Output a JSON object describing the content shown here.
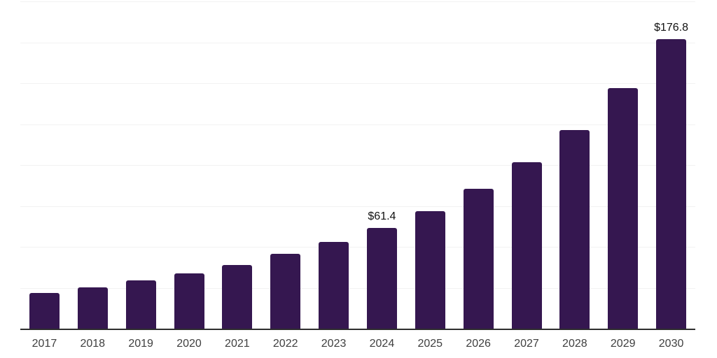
{
  "chart_data": {
    "type": "bar",
    "categories": [
      "2017",
      "2018",
      "2019",
      "2020",
      "2021",
      "2022",
      "2023",
      "2024",
      "2025",
      "2026",
      "2027",
      "2028",
      "2029",
      "2030"
    ],
    "values": [
      21.8,
      25.2,
      29.5,
      33.8,
      38.9,
      45.7,
      52.9,
      61.4,
      71.9,
      85.6,
      101.6,
      121.3,
      146.9,
      176.8
    ],
    "value_labels": [
      "",
      "",
      "",
      "",
      "",
      "",
      "",
      "$61.4",
      "",
      "",
      "",
      "",
      "",
      "$176.8"
    ],
    "title": "",
    "xlabel": "",
    "ylabel": "",
    "ylim": [
      0,
      200
    ],
    "gridline_step": 25,
    "grid": true,
    "legend": "none",
    "y_axis_labels_shown": false,
    "bar_color": "#351750",
    "background_color": "#ffffff",
    "gridline_color": "#f2f2f2",
    "axis_line_color": "#2e2e2e",
    "tick_label_color": "#3f3f3f",
    "value_label_color": "#111111"
  }
}
